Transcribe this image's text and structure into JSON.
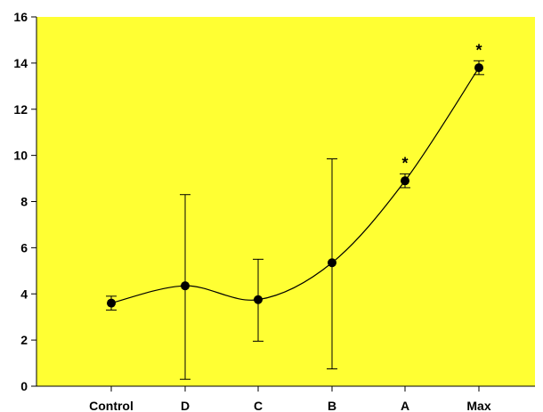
{
  "chart_data": {
    "type": "line",
    "categories": [
      "Control",
      "D",
      "C",
      "B",
      "A",
      "Max"
    ],
    "series": [
      {
        "values": [
          3.6,
          4.35,
          3.75,
          5.35,
          8.9,
          13.8
        ],
        "error_low": [
          3.3,
          0.3,
          1.95,
          0.75,
          8.6,
          13.5
        ],
        "error_high": [
          3.9,
          8.3,
          5.5,
          9.85,
          9.2,
          14.1
        ],
        "annotations": [
          "",
          "",
          "",
          "",
          "*",
          "*"
        ]
      }
    ],
    "ylim": [
      0,
      16
    ],
    "y_ticks": [
      0,
      2,
      4,
      6,
      8,
      10,
      12,
      14,
      16
    ],
    "grid": false,
    "plot_background": "#ffff33",
    "line_color": "#000000",
    "marker_color": "#000000",
    "smooth_line": true
  }
}
